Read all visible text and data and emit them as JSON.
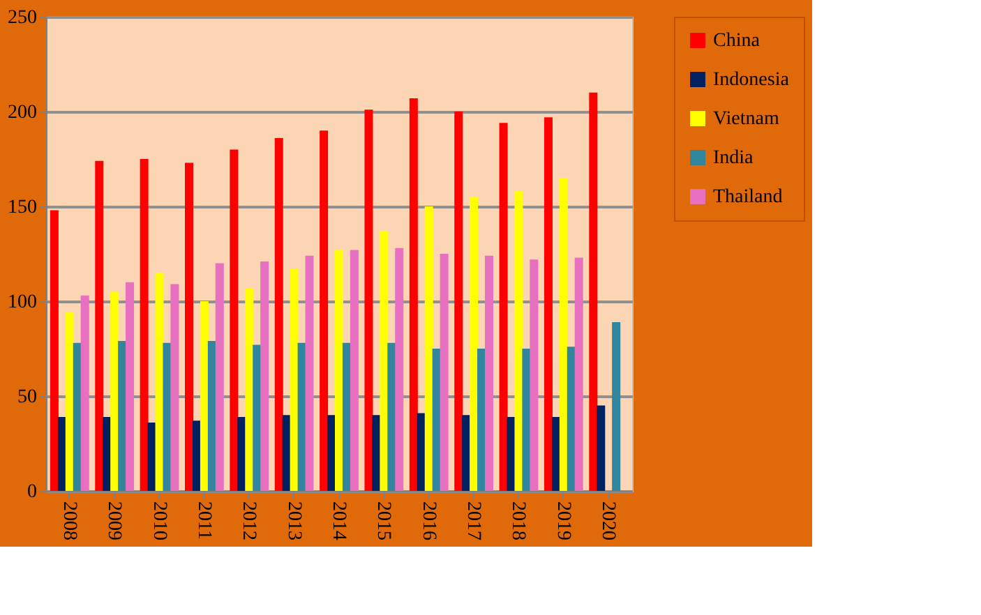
{
  "chart_data": {
    "type": "bar",
    "categories": [
      "2008",
      "2009",
      "2010",
      "2011",
      "2012",
      "2013",
      "2014",
      "2015",
      "2016",
      "2017",
      "2018",
      "2019",
      "2020"
    ],
    "series": [
      {
        "name": "China",
        "color": "#ff0000",
        "values": [
          148,
          174,
          175,
          173,
          180,
          186,
          190,
          201,
          207,
          200,
          194,
          197,
          210
        ]
      },
      {
        "name": "Indonesia",
        "color": "#002060",
        "values": [
          39,
          39,
          36,
          37,
          39,
          40,
          40,
          40,
          41,
          40,
          39,
          39,
          45
        ]
      },
      {
        "name": "Vietnam",
        "color": "#ffff00",
        "values": [
          94,
          105,
          115,
          100,
          107,
          117,
          127,
          137,
          150,
          155,
          158,
          165,
          null
        ]
      },
      {
        "name": "India",
        "color": "#31859c",
        "values": [
          78,
          79,
          78,
          79,
          77,
          78,
          78,
          78,
          75,
          75,
          75,
          76,
          89
        ]
      },
      {
        "name": "Thailand",
        "color": "#e870c0",
        "values": [
          103,
          110,
          109,
          120,
          121,
          124,
          127,
          128,
          125,
          124,
          122,
          123,
          null
        ]
      }
    ],
    "ylim": [
      0,
      250
    ],
    "yticks": [
      0,
      50,
      100,
      150,
      200,
      250
    ],
    "grid": "y",
    "legend": "right"
  }
}
